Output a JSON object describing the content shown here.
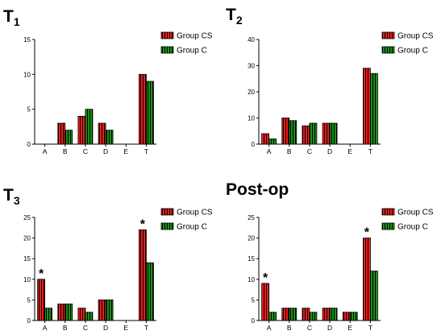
{
  "colors": {
    "group_cs": "#ee1c1c",
    "group_c": "#189418",
    "hatch": "#000000"
  },
  "chart_data": [
    {
      "type": "bar",
      "title": "T",
      "title_sub": "1",
      "categories": [
        "A",
        "B",
        "C",
        "D",
        "E",
        "T"
      ],
      "series": [
        {
          "name": "Group CS",
          "values": [
            0,
            3,
            4,
            3,
            0,
            10
          ]
        },
        {
          "name": "Group C",
          "values": [
            0,
            2,
            5,
            2,
            0,
            9
          ]
        }
      ],
      "ylim": [
        0,
        15
      ],
      "yticks": [
        0,
        5,
        10,
        15
      ],
      "legend": "top-right",
      "grid": false,
      "annotations": []
    },
    {
      "type": "bar",
      "title": "T",
      "title_sub": "2",
      "categories": [
        "A",
        "B",
        "C",
        "D",
        "E",
        "T"
      ],
      "series": [
        {
          "name": "Group CS",
          "values": [
            4,
            10,
            7,
            8,
            0,
            29
          ]
        },
        {
          "name": "Group C",
          "values": [
            2,
            9,
            8,
            8,
            0,
            27
          ]
        }
      ],
      "ylim": [
        0,
        40
      ],
      "yticks": [
        0,
        10,
        20,
        30,
        40
      ],
      "legend": "top-right",
      "grid": false,
      "annotations": []
    },
    {
      "type": "bar",
      "title": "T",
      "title_sub": "3",
      "categories": [
        "A",
        "B",
        "C",
        "D",
        "E",
        "T"
      ],
      "series": [
        {
          "name": "Group CS",
          "values": [
            10,
            4,
            3,
            5,
            0,
            22
          ]
        },
        {
          "name": "Group C",
          "values": [
            3,
            4,
            2,
            5,
            0,
            14
          ]
        }
      ],
      "ylim": [
        0,
        25
      ],
      "yticks": [
        0,
        5,
        10,
        15,
        20,
        25
      ],
      "legend": "top-right",
      "grid": false,
      "annotations": [
        {
          "text": "*",
          "category": "A",
          "series": "Group CS"
        },
        {
          "text": "*",
          "category": "T",
          "series": "Group CS"
        }
      ]
    },
    {
      "type": "bar",
      "title": "Post-op",
      "title_sub": "",
      "categories": [
        "A",
        "B",
        "C",
        "D",
        "E",
        "T"
      ],
      "series": [
        {
          "name": "Group CS",
          "values": [
            9,
            3,
            3,
            3,
            2,
            20
          ]
        },
        {
          "name": "Group C",
          "values": [
            2,
            3,
            2,
            3,
            2,
            12
          ]
        }
      ],
      "ylim": [
        0,
        25
      ],
      "yticks": [
        0,
        5,
        10,
        15,
        20,
        25
      ],
      "legend": "top-right",
      "grid": false,
      "annotations": [
        {
          "text": "*",
          "category": "A",
          "series": "Group CS"
        },
        {
          "text": "*",
          "category": "T",
          "series": "Group CS"
        }
      ]
    }
  ]
}
